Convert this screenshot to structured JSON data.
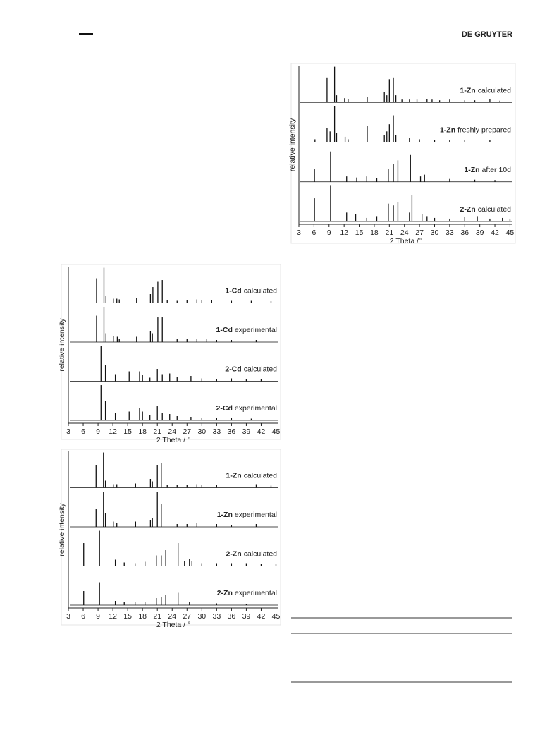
{
  "header": {
    "publisher": "DE GRUYTER"
  },
  "chart_data": [
    {
      "type": "stick",
      "xlabel": "2 Theta  /°",
      "ylabel": "relative intensity",
      "xlim": [
        3,
        45.5
      ],
      "xticks": [
        3,
        6,
        9,
        12,
        15,
        18,
        21,
        24,
        27,
        30,
        33,
        36,
        39,
        42,
        45
      ],
      "ylim": [
        0,
        100
      ],
      "color": "#111111",
      "series": [
        {
          "compound": "1-Zn",
          "name": "calculated",
          "x": [
            8.6,
            10.1,
            10.5,
            12.1,
            12.8,
            16.6,
            20.0,
            20.5,
            21.0,
            21.8,
            22.3,
            23.5,
            25,
            26.5,
            28.5,
            29.5,
            31,
            33,
            36,
            38,
            41,
            43
          ],
          "values": [
            70,
            100,
            20,
            12,
            10,
            15,
            30,
            20,
            65,
            70,
            20,
            8,
            8,
            8,
            10,
            8,
            6,
            8,
            6,
            6,
            10,
            5
          ]
        },
        {
          "compound": "1-Zn",
          "name": "freshly prepared",
          "x": [
            6.2,
            8.6,
            9.2,
            10.1,
            10.5,
            12.2,
            12.8,
            16.6,
            20.0,
            20.5,
            21.0,
            21.8,
            22.3,
            25,
            27,
            30,
            33,
            36,
            41
          ],
          "values": [
            8,
            40,
            30,
            100,
            25,
            15,
            8,
            45,
            20,
            30,
            50,
            75,
            20,
            12,
            8,
            6,
            5,
            6,
            6
          ]
        },
        {
          "compound": "1-Zn",
          "name": "after 10d",
          "x": [
            6.1,
            9.3,
            12.5,
            14.5,
            16.5,
            18.5,
            20.8,
            21.8,
            22.7,
            25.2,
            27.2,
            28,
            33,
            38,
            42
          ],
          "values": [
            35,
            85,
            15,
            12,
            15,
            10,
            35,
            50,
            60,
            75,
            15,
            20,
            8,
            6,
            5
          ]
        },
        {
          "compound": "2-Zn",
          "name": "calculated",
          "x": [
            6.1,
            9.3,
            12.5,
            14.3,
            16.5,
            18.5,
            20.8,
            21.8,
            22.7,
            25.0,
            25.5,
            27.5,
            28.5,
            30,
            33,
            36,
            38.5,
            41,
            43.5,
            45
          ],
          "values": [
            65,
            100,
            25,
            20,
            10,
            15,
            50,
            45,
            55,
            25,
            75,
            20,
            15,
            10,
            8,
            12,
            15,
            8,
            10,
            8
          ]
        }
      ]
    },
    {
      "type": "stick",
      "xlabel": "2 Theta / °",
      "ylabel": "relative intensity",
      "xlim": [
        3,
        45.5
      ],
      "xticks": [
        3,
        6,
        9,
        12,
        15,
        18,
        21,
        24,
        27,
        30,
        33,
        36,
        39,
        42,
        45
      ],
      "ylim": [
        0,
        100
      ],
      "color": "#111111",
      "series": [
        {
          "compound": "1-Cd",
          "name": "calculated",
          "x": [
            8.7,
            10.2,
            10.6,
            12.1,
            12.8,
            13.3,
            16.8,
            19.6,
            20.1,
            21.1,
            22,
            23,
            25,
            27,
            29,
            30,
            32,
            36,
            40,
            44
          ],
          "values": [
            70,
            100,
            20,
            12,
            12,
            10,
            15,
            25,
            45,
            60,
            65,
            8,
            6,
            8,
            10,
            8,
            8,
            6,
            6,
            5
          ]
        },
        {
          "compound": "1-Cd",
          "name": "experimental",
          "x": [
            8.7,
            10.2,
            10.6,
            12.1,
            12.9,
            13.3,
            16.8,
            19.6,
            20,
            21.1,
            22,
            25,
            27,
            29,
            31,
            33,
            36,
            41
          ],
          "values": [
            75,
            100,
            25,
            18,
            15,
            10,
            15,
            30,
            25,
            70,
            70,
            8,
            8,
            10,
            8,
            6,
            6,
            6
          ]
        },
        {
          "compound": "2-Cd",
          "name": "calculated",
          "x": [
            9.6,
            10.5,
            12.5,
            15.3,
            17.4,
            18,
            19.5,
            21,
            22,
            23.5,
            25,
            27.8,
            30,
            33,
            36,
            39,
            42
          ],
          "values": [
            100,
            45,
            20,
            28,
            28,
            18,
            10,
            35,
            20,
            22,
            12,
            15,
            8,
            6,
            8,
            6,
            5
          ]
        },
        {
          "compound": "2-Cd",
          "name": "experimental",
          "x": [
            9.6,
            10.5,
            12.5,
            15.3,
            17.4,
            18,
            19.5,
            21,
            22,
            23.5,
            25,
            27.8,
            30,
            33,
            36,
            40
          ],
          "values": [
            100,
            55,
            20,
            25,
            35,
            25,
            15,
            40,
            20,
            18,
            12,
            10,
            8,
            6,
            6,
            5
          ]
        }
      ]
    },
    {
      "type": "stick",
      "xlabel": "2 Theta / °",
      "ylabel": "relative intensity",
      "xlim": [
        3,
        45.5
      ],
      "xticks": [
        3,
        6,
        9,
        12,
        15,
        18,
        21,
        24,
        27,
        30,
        33,
        36,
        39,
        42,
        45
      ],
      "ylim": [
        0,
        100
      ],
      "color": "#111111",
      "series": [
        {
          "compound": "1-Zn",
          "name": "calculated",
          "x": [
            8.6,
            10.1,
            10.5,
            12.1,
            12.8,
            16.6,
            19.6,
            20,
            21,
            21.8,
            23,
            25,
            27,
            29,
            30,
            33,
            41,
            44
          ],
          "values": [
            65,
            100,
            20,
            10,
            10,
            12,
            25,
            18,
            65,
            70,
            8,
            8,
            8,
            10,
            8,
            8,
            10,
            6
          ]
        },
        {
          "compound": "1-Zn",
          "name": "experimental",
          "x": [
            8.6,
            10.1,
            10.5,
            12.1,
            12.8,
            16.6,
            19.6,
            20,
            21,
            21.8,
            25,
            27,
            29,
            33,
            36,
            41
          ],
          "values": [
            50,
            100,
            40,
            15,
            12,
            15,
            20,
            25,
            100,
            65,
            8,
            8,
            10,
            8,
            6,
            8
          ]
        },
        {
          "compound": "2-Zn",
          "name": "calculated",
          "x": [
            6.1,
            9.3,
            12.5,
            14.3,
            16.5,
            18.5,
            20.8,
            21.8,
            22.7,
            25.2,
            26.5,
            27.5,
            28,
            30,
            33,
            36,
            39,
            42,
            45
          ],
          "values": [
            65,
            100,
            18,
            10,
            8,
            12,
            30,
            30,
            45,
            65,
            15,
            20,
            15,
            8,
            8,
            8,
            8,
            6,
            6
          ]
        },
        {
          "compound": "2-Zn",
          "name": "experimental",
          "x": [
            6.1,
            9.3,
            12.5,
            14.3,
            16.5,
            18.5,
            20.8,
            21.8,
            22.7,
            25.2,
            27.5,
            33,
            39
          ],
          "values": [
            40,
            65,
            12,
            8,
            8,
            10,
            20,
            22,
            30,
            35,
            10,
            5,
            4
          ]
        }
      ]
    }
  ]
}
